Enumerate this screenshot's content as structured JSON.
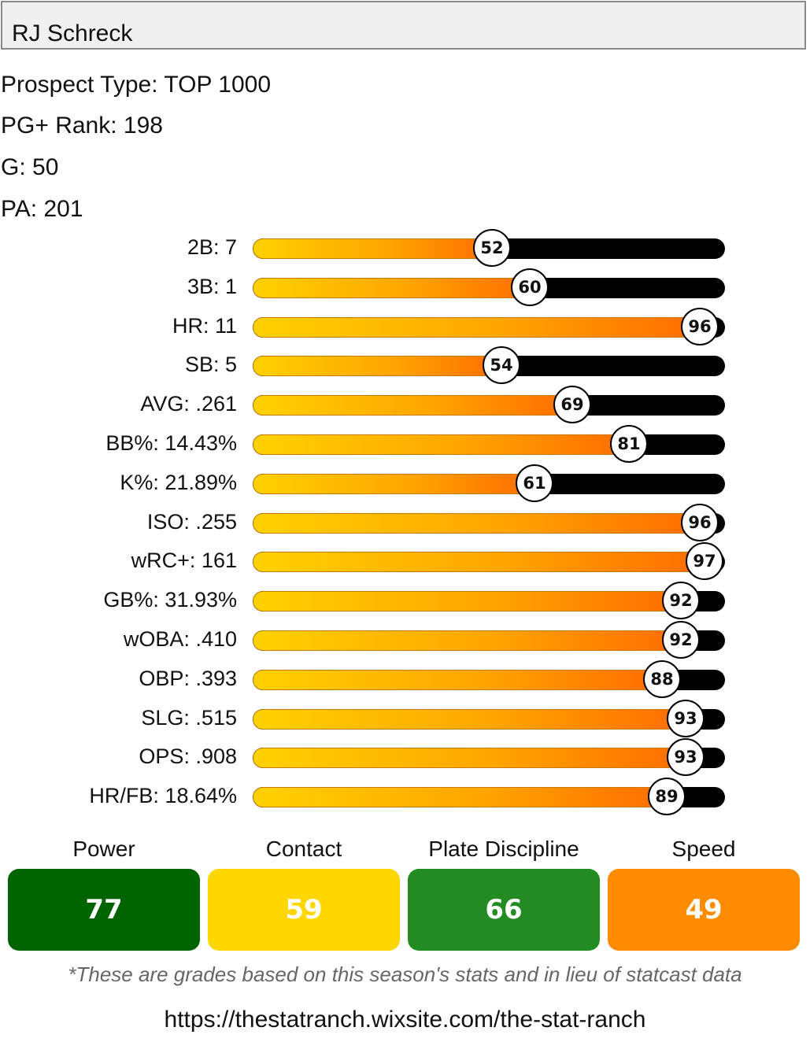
{
  "player": {
    "name": "RJ Schreck"
  },
  "info": {
    "prospect_type": "Prospect Type: TOP 1000",
    "pg_rank": "PG+ Rank: 198",
    "games": "G: 50",
    "plate_appearances": "PA: 201"
  },
  "stats": [
    {
      "label": "2B: 7",
      "percentile": 52
    },
    {
      "label": "3B: 1",
      "percentile": 60
    },
    {
      "label": "HR: 11",
      "percentile": 96
    },
    {
      "label": "SB: 5",
      "percentile": 54
    },
    {
      "label": "AVG: .261",
      "percentile": 69
    },
    {
      "label": "BB%: 14.43%",
      "percentile": 81
    },
    {
      "label": "K%: 21.89%",
      "percentile": 61
    },
    {
      "label": "ISO: .255",
      "percentile": 96
    },
    {
      "label": "wRC+: 161",
      "percentile": 97
    },
    {
      "label": "GB%: 31.93%",
      "percentile": 92
    },
    {
      "label": "wOBA: .410",
      "percentile": 92
    },
    {
      "label": "OBP: .393",
      "percentile": 88
    },
    {
      "label": "SLG: .515",
      "percentile": 93
    },
    {
      "label": "OPS: .908",
      "percentile": 93
    },
    {
      "label": "HR/FB: 18.64%",
      "percentile": 89
    }
  ],
  "grades": [
    {
      "label": "Power",
      "value": "77",
      "color": "#006400",
      "text_color": "#ffffff"
    },
    {
      "label": "Contact",
      "value": "59",
      "color": "#ffd700",
      "text_color": "#ffffff"
    },
    {
      "label": "Plate Discipline",
      "value": "66",
      "color": "#228b22",
      "text_color": "#ffffff"
    },
    {
      "label": "Speed",
      "value": "49",
      "color": "#ff8c00",
      "text_color": "#ffffff"
    }
  ],
  "colors": {
    "bar_track": "#000000",
    "bar_fill_start": "#ffd200",
    "bar_fill_end": "#ff6a00"
  },
  "footnote": "*These are grades based on this season's stats and in lieu of statcast data",
  "url": "https://thestatranch.wixsite.com/the-stat-ranch"
}
